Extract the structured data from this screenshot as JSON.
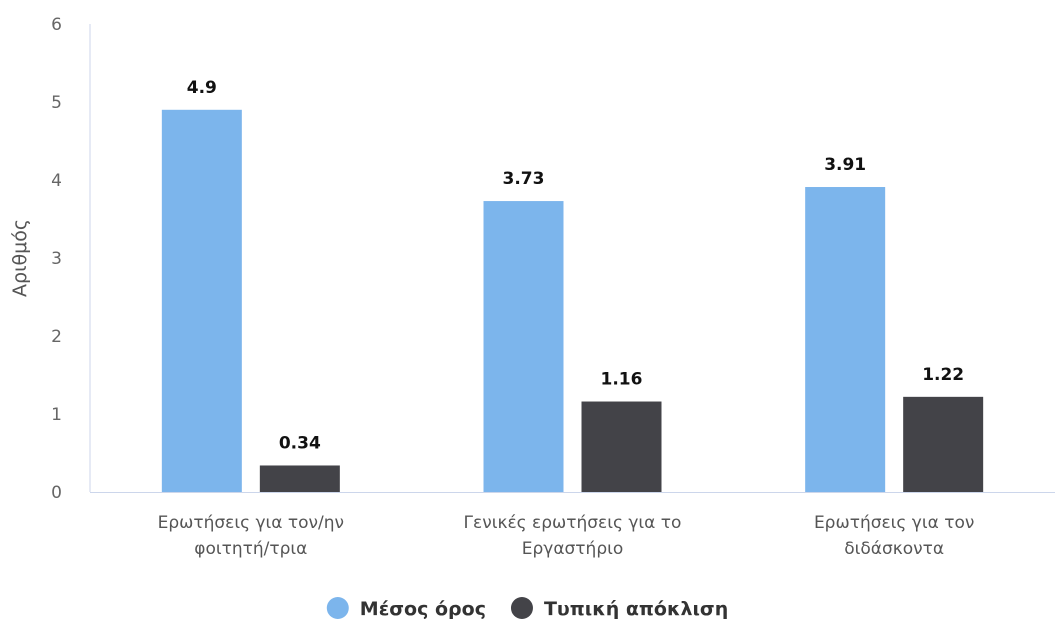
{
  "chart_data": {
    "type": "bar",
    "title": "",
    "xlabel": "",
    "ylabel": "Αριθμός",
    "ylim": [
      0,
      6
    ],
    "yticks": [
      0,
      1,
      2,
      3,
      4,
      5,
      6
    ],
    "grid": false,
    "legend_position": "bottom-center",
    "categories": [
      [
        "Ερωτήσεις για τον/ην",
        "φοιτητή/τρια"
      ],
      [
        "Γενικές ερωτήσεις για το",
        "Εργαστήριο"
      ],
      [
        "Ερωτήσεις για τον",
        "διδάσκοντα"
      ]
    ],
    "series": [
      {
        "name": "Μέσος όρος",
        "color": "#7cb5ec",
        "values": [
          4.9,
          3.73,
          3.91
        ],
        "labels": [
          "4.9",
          "3.73",
          "3.91"
        ]
      },
      {
        "name": "Τυπική απόκλιση",
        "color": "#434348",
        "values": [
          0.34,
          1.16,
          1.22
        ],
        "labels": [
          "0.34",
          "1.16",
          "1.22"
        ]
      }
    ],
    "axis_color": "#ccd6eb"
  }
}
